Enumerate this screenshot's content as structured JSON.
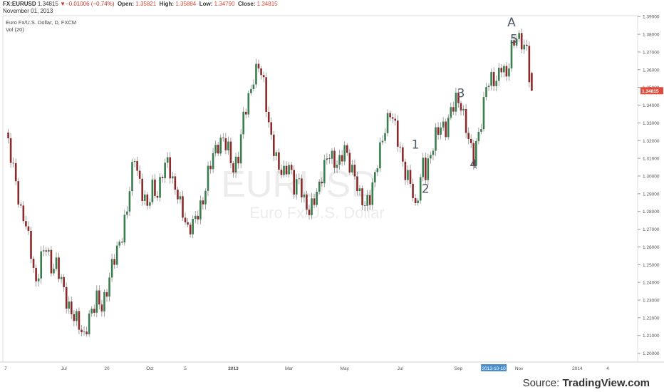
{
  "header": {
    "symbol": "FX:EURUSD",
    "last": "1.34815",
    "change": "−0.01006 (−0.74%)",
    "open_label": "Open:",
    "open": "1.35821",
    "high_label": "High:",
    "high": "1.35884",
    "low_label": "Low:",
    "low": "1.34790",
    "close_label": "Close:",
    "close": "1.34815",
    "date": "November 01, 2013"
  },
  "legend": {
    "series_name": "Euro Fx/U.S. Dollar, D, FXCM",
    "indicator": "Vol (20)"
  },
  "watermark": {
    "symbol": "EURUSD",
    "description": "Euro Fx/U.S. Dollar"
  },
  "source": {
    "prefix": "Source: ",
    "brand": "TradingView.com"
  },
  "colors": {
    "up": "#3a7d4f",
    "down": "#8b2a2a",
    "price_label": "#e04c3c",
    "date_highlight": "#4a8fcc"
  },
  "chart_data": {
    "type": "candlestick",
    "title": "Euro Fx/U.S. Dollar, D, FXCM",
    "ylim": [
      1.195,
      1.3905
    ],
    "y_ticks": [
      "1.39000",
      "1.38000",
      "1.37000",
      "1.36000",
      "1.35000",
      "1.34000",
      "1.33000",
      "1.32000",
      "1.31000",
      "1.30000",
      "1.29000",
      "1.28000",
      "1.27000",
      "1.26000",
      "1.25000",
      "1.24000",
      "1.23000",
      "1.22000",
      "1.21000",
      "1.20000"
    ],
    "x_ticks": [
      {
        "label": "7",
        "i": 0
      },
      {
        "label": "Jul",
        "i": 23
      },
      {
        "label": "20",
        "i": 40
      },
      {
        "label": "Oct",
        "i": 57
      },
      {
        "label": "5",
        "i": 71
      },
      {
        "label": "2013",
        "i": 90
      },
      {
        "label": "Mar",
        "i": 112
      },
      {
        "label": "May",
        "i": 134
      },
      {
        "label": "Jul",
        "i": 156
      },
      {
        "label": "Sep",
        "i": 179
      },
      {
        "label": "2013-10-10",
        "i": 193,
        "highlight": true
      },
      {
        "label": "Nov",
        "i": 203
      },
      {
        "label": "2014",
        "i": 226
      },
      {
        "label": "4",
        "i": 238
      }
    ],
    "current_price": "1.34815",
    "close_path": [
      [
        0,
        1.322
      ],
      [
        3,
        1.305
      ],
      [
        6,
        1.282
      ],
      [
        8,
        1.276
      ],
      [
        10,
        1.258
      ],
      [
        12,
        1.237
      ],
      [
        14,
        1.252
      ],
      [
        16,
        1.258
      ],
      [
        18,
        1.246
      ],
      [
        20,
        1.251
      ],
      [
        22,
        1.244
      ],
      [
        24,
        1.232
      ],
      [
        26,
        1.224
      ],
      [
        28,
        1.219
      ],
      [
        30,
        1.21
      ],
      [
        31,
        1.206
      ],
      [
        33,
        1.218
      ],
      [
        35,
        1.226
      ],
      [
        36,
        1.232
      ],
      [
        38,
        1.228
      ],
      [
        40,
        1.238
      ],
      [
        42,
        1.252
      ],
      [
        44,
        1.258
      ],
      [
        46,
        1.264
      ],
      [
        48,
        1.279
      ],
      [
        50,
        1.302
      ],
      [
        51,
        1.311
      ],
      [
        52,
        1.302
      ],
      [
        54,
        1.292
      ],
      [
        56,
        1.286
      ],
      [
        58,
        1.296
      ],
      [
        60,
        1.289
      ],
      [
        62,
        1.301
      ],
      [
        64,
        1.306
      ],
      [
        66,
        1.294
      ],
      [
        68,
        1.289
      ],
      [
        70,
        1.281
      ],
      [
        72,
        1.272
      ],
      [
        74,
        1.276
      ],
      [
        76,
        1.28
      ],
      [
        78,
        1.284
      ],
      [
        80,
        1.299
      ],
      [
        82,
        1.31
      ],
      [
        84,
        1.316
      ],
      [
        86,
        1.322
      ],
      [
        88,
        1.318
      ],
      [
        90,
        1.306
      ],
      [
        92,
        1.312
      ],
      [
        94,
        1.333
      ],
      [
        96,
        1.341
      ],
      [
        98,
        1.352
      ],
      [
        100,
        1.362
      ],
      [
        102,
        1.353
      ],
      [
        104,
        1.331
      ],
      [
        106,
        1.318
      ],
      [
        108,
        1.306
      ],
      [
        110,
        1.301
      ],
      [
        112,
        1.304
      ],
      [
        114,
        1.291
      ],
      [
        116,
        1.296
      ],
      [
        118,
        1.286
      ],
      [
        120,
        1.282
      ],
      [
        122,
        1.29
      ],
      [
        124,
        1.296
      ],
      [
        126,
        1.306
      ],
      [
        128,
        1.311
      ],
      [
        130,
        1.304
      ],
      [
        132,
        1.306
      ],
      [
        134,
        1.316
      ],
      [
        136,
        1.308
      ],
      [
        138,
        1.303
      ],
      [
        140,
        1.291
      ],
      [
        142,
        1.284
      ],
      [
        144,
        1.286
      ],
      [
        146,
        1.298
      ],
      [
        148,
        1.313
      ],
      [
        150,
        1.326
      ],
      [
        152,
        1.338
      ],
      [
        154,
        1.331
      ],
      [
        156,
        1.316
      ],
      [
        158,
        1.302
      ],
      [
        160,
        1.296
      ],
      [
        161,
        1.287
      ],
      [
        162,
        1.278
      ],
      [
        164,
        1.296
      ],
      [
        165,
        1.306
      ],
      [
        166,
        1.301
      ],
      [
        168,
        1.313
      ],
      [
        170,
        1.326
      ],
      [
        172,
        1.331
      ],
      [
        174,
        1.327
      ],
      [
        176,
        1.336
      ],
      [
        178,
        1.341
      ],
      [
        180,
        1.337
      ],
      [
        182,
        1.326
      ],
      [
        184,
        1.316
      ],
      [
        185,
        1.312
      ],
      [
        186,
        1.32
      ],
      [
        188,
        1.333
      ],
      [
        190,
        1.353
      ],
      [
        192,
        1.354
      ],
      [
        194,
        1.351
      ],
      [
        196,
        1.36
      ],
      [
        198,
        1.354
      ],
      [
        200,
        1.373
      ],
      [
        202,
        1.381
      ],
      [
        204,
        1.378
      ],
      [
        206,
        1.373
      ],
      [
        207,
        1.358
      ],
      [
        208,
        1.348
      ]
    ],
    "annotations": [
      {
        "label": "A",
        "x": 200,
        "y": 1.3845
      },
      {
        "label": "5",
        "x": 201,
        "y": 1.375
      },
      {
        "label": "3",
        "x": 180,
        "y": 1.3445
      },
      {
        "label": "1",
        "x": 162,
        "y": 1.3155
      },
      {
        "label": "4",
        "x": 185,
        "y": 1.3045
      },
      {
        "label": "2",
        "x": 166,
        "y": 1.2905
      }
    ]
  }
}
